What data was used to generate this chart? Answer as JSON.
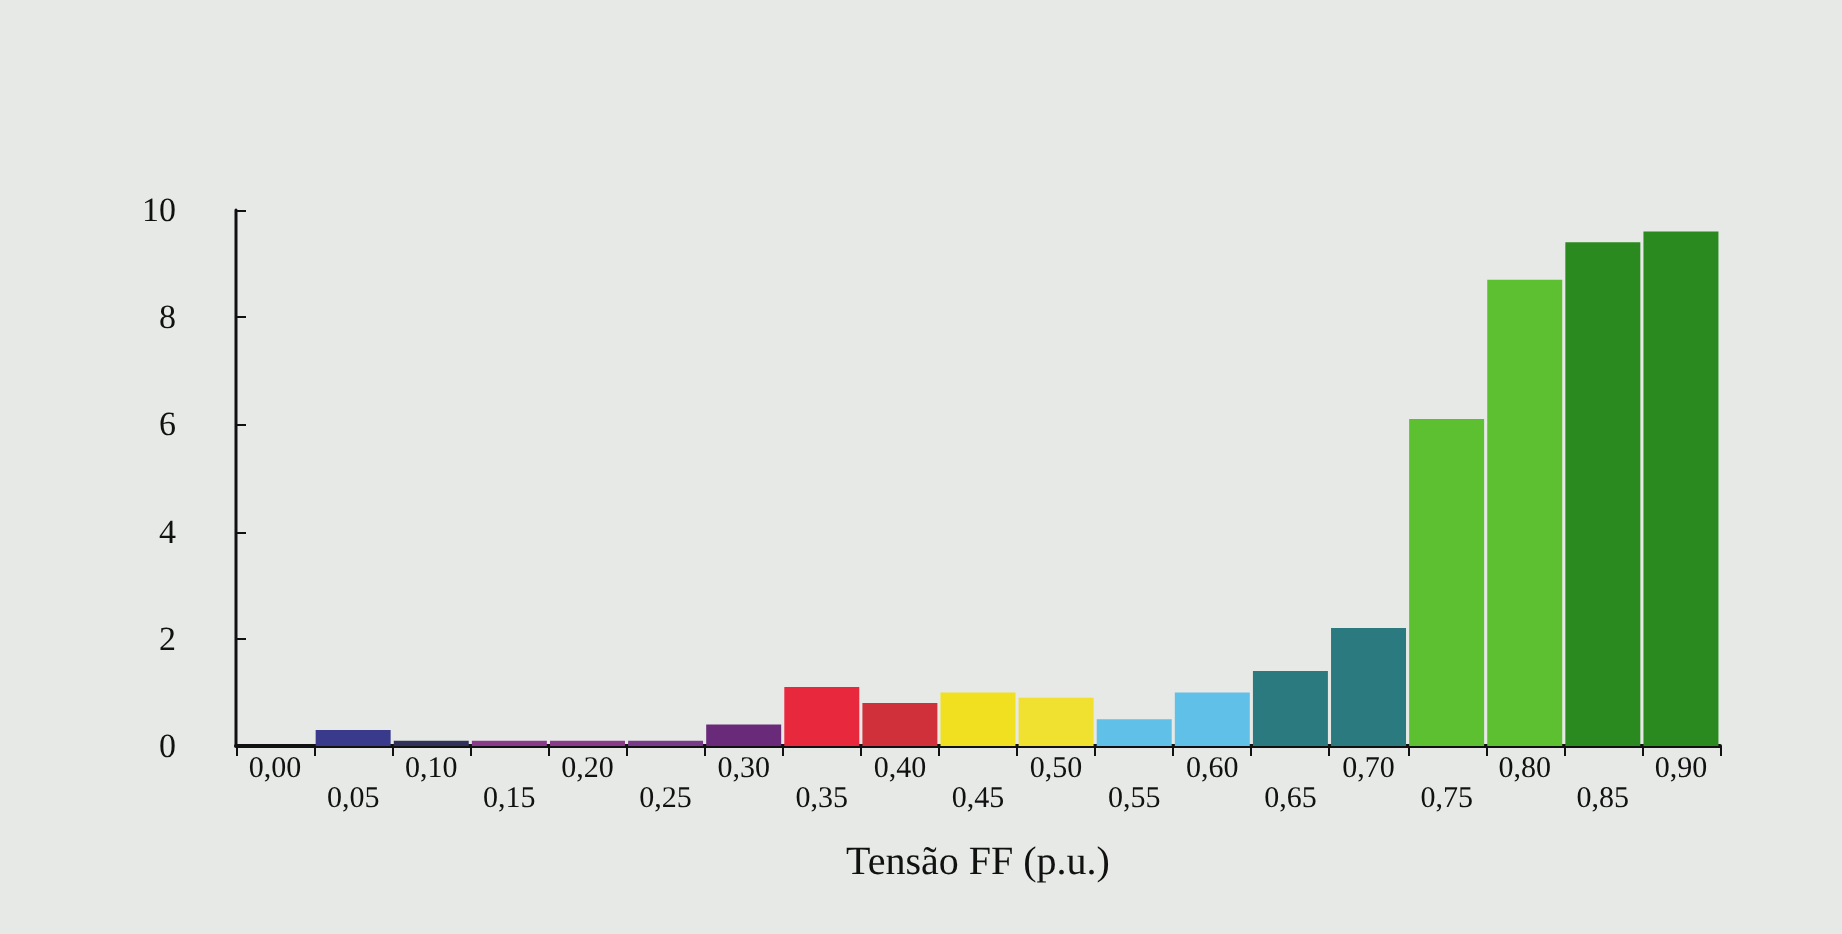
{
  "chart_data": {
    "type": "bar",
    "xlabel": "Tensão FF (p.u.)",
    "categories": [
      "0,00",
      "0,05",
      "0,10",
      "0,15",
      "0,20",
      "0,25",
      "0,30",
      "0,35",
      "0,40",
      "0,45",
      "0,50",
      "0,55",
      "0,60",
      "0,65",
      "0,70",
      "0,75",
      "0,80",
      "0,85",
      "0,90"
    ],
    "values": [
      0,
      0.3,
      0.1,
      0.1,
      0.1,
      0.1,
      0.4,
      1.1,
      0.8,
      1.0,
      0.9,
      0.5,
      1.0,
      1.4,
      2.2,
      6.1,
      8.7,
      9.4,
      9.6
    ],
    "colors": [
      "#3a3a8c",
      "#3a3a8c",
      "#30305a",
      "#8a3a8a",
      "#8a3a8a",
      "#7a3a8a",
      "#6a2a7a",
      "#e8283c",
      "#d0303a",
      "#f0e020",
      "#f0e030",
      "#60c0e8",
      "#60c0e8",
      "#2a7a80",
      "#2a7a80",
      "#5cc030",
      "#5cc030",
      "#2a8a20",
      "#2a8a20"
    ],
    "ylim": [
      0,
      10
    ],
    "yticks": [
      0,
      2,
      4,
      6,
      8,
      10
    ],
    "grid": false
  }
}
